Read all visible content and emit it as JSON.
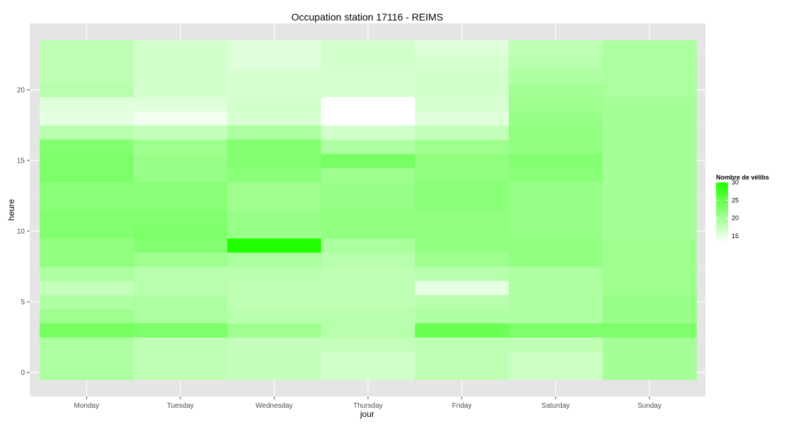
{
  "chart_data": {
    "type": "heatmap",
    "title": "Occupation station 17116 - REIMS",
    "xlabel": "jour",
    "ylabel": "heure",
    "categories": [
      "Monday",
      "Tuesday",
      "Wednesday",
      "Thursday",
      "Friday",
      "Saturday",
      "Sunday"
    ],
    "hours": [
      0,
      1,
      2,
      3,
      4,
      5,
      6,
      7,
      8,
      9,
      10,
      11,
      12,
      13,
      14,
      15,
      16,
      17,
      18,
      19,
      20,
      21,
      22,
      23
    ],
    "ylim": [
      -0.5,
      23.5
    ],
    "yticks": [
      0,
      5,
      10,
      15,
      20
    ],
    "values": [
      [
        19.5,
        19.5,
        19.5,
        23.5,
        20.5,
        19.0,
        17.5,
        19.5,
        21.5,
        21.5,
        22.5,
        22.5,
        22.0,
        22.0,
        23.0,
        23.0,
        22.5,
        18.5,
        15.0,
        15.5,
        18.5,
        18.0,
        18.0,
        18.0
      ],
      [
        18.0,
        18.0,
        18.0,
        23.0,
        19.5,
        19.5,
        18.5,
        18.5,
        20.5,
        22.5,
        23.0,
        22.5,
        22.0,
        22.0,
        21.0,
        21.0,
        20.5,
        17.5,
        14.0,
        15.5,
        16.5,
        16.5,
        16.5,
        16.5
      ],
      [
        17.5,
        17.5,
        17.5,
        20.5,
        18.5,
        18.0,
        18.0,
        18.5,
        19.5,
        30.0,
        21.0,
        21.0,
        20.5,
        20.5,
        22.0,
        22.5,
        22.5,
        19.5,
        16.0,
        16.5,
        16.0,
        16.0,
        15.5,
        15.5
      ],
      [
        16.5,
        16.5,
        17.5,
        18.5,
        18.5,
        18.0,
        18.0,
        18.0,
        18.5,
        19.5,
        21.5,
        21.5,
        21.0,
        21.0,
        20.5,
        23.5,
        19.0,
        16.5,
        13.0,
        13.0,
        16.0,
        16.0,
        16.5,
        16.5
      ],
      [
        18.0,
        18.0,
        18.0,
        24.5,
        19.0,
        18.5,
        15.0,
        18.5,
        20.5,
        21.5,
        21.5,
        21.5,
        22.0,
        22.0,
        21.5,
        21.5,
        20.5,
        17.5,
        15.5,
        16.0,
        16.5,
        16.5,
        16.0,
        15.5
      ],
      [
        17.0,
        17.0,
        18.0,
        23.0,
        19.0,
        19.0,
        19.0,
        19.5,
        21.5,
        21.5,
        21.0,
        21.0,
        21.0,
        21.0,
        22.0,
        22.5,
        21.5,
        21.5,
        21.0,
        20.5,
        20.0,
        19.0,
        18.5,
        18.0
      ],
      [
        20.0,
        20.0,
        20.0,
        23.0,
        21.0,
        21.0,
        20.5,
        20.5,
        20.5,
        20.5,
        20.0,
        20.0,
        20.0,
        20.0,
        20.0,
        20.0,
        20.0,
        20.0,
        20.0,
        20.0,
        19.5,
        19.5,
        19.5,
        19.5
      ]
    ],
    "color_scale": {
      "min": 13,
      "max": 30,
      "low_color": "#ffffff",
      "high_color": "#22ff00"
    },
    "legend": {
      "title": "Nombre de vélibs",
      "breaks": [
        30,
        25,
        20,
        15
      ],
      "position": "right"
    },
    "grid": true,
    "panel_background": "#e5e5e5"
  }
}
